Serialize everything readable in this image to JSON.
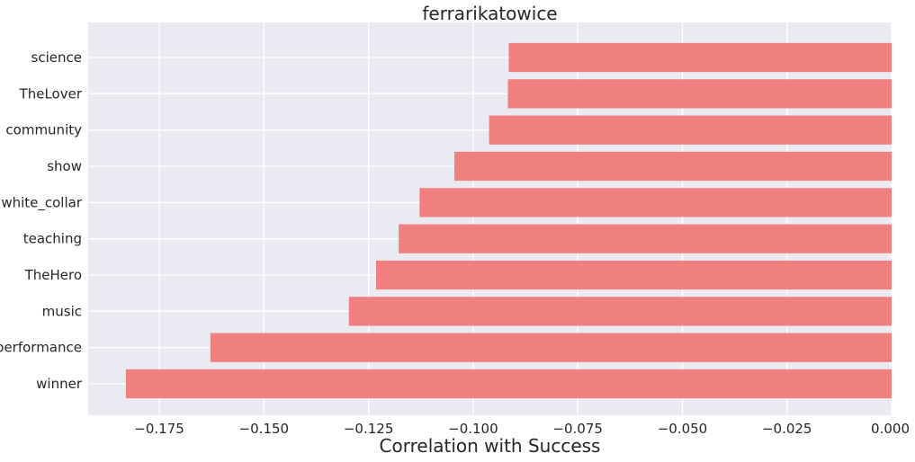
{
  "chart_data": {
    "type": "bar",
    "orientation": "horizontal",
    "title": "ferrarikatowice",
    "xlabel": "Correlation with Success",
    "ylabel": "",
    "categories": [
      "science",
      "TheLover",
      "community",
      "show",
      "white_collar",
      "teaching",
      "TheHero",
      "music",
      "performance",
      "winner"
    ],
    "values": [
      -0.0915,
      -0.0917,
      -0.0962,
      -0.1045,
      -0.1128,
      -0.1178,
      -0.1232,
      -0.1297,
      -0.1628,
      -0.183
    ],
    "xlim": [
      -0.192,
      0.0
    ],
    "xticks": [
      -0.175,
      -0.15,
      -0.125,
      -0.1,
      -0.075,
      -0.05,
      -0.025,
      0.0
    ],
    "xtick_labels": [
      "−0.175",
      "−0.150",
      "−0.125",
      "−0.100",
      "−0.075",
      "−0.050",
      "−0.025",
      "0.000"
    ],
    "grid": true,
    "bar_color": "#f08080",
    "background_color": "#eaeaf2",
    "grid_color": "#ffffff"
  }
}
